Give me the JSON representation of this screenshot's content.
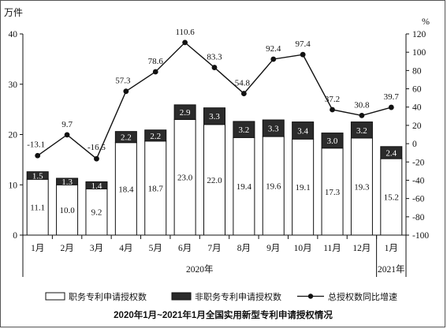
{
  "chart_data": {
    "type": "bar",
    "stacked": true,
    "categories": [
      "1月",
      "2月",
      "3月",
      "4月",
      "5月",
      "6月",
      "7月",
      "8月",
      "9月",
      "10月",
      "11月",
      "12月",
      "1月"
    ],
    "year_groups": [
      {
        "label": "2020年",
        "count": 12
      },
      {
        "label": "2021年",
        "count": 1
      }
    ],
    "series": [
      {
        "name": "职务专利申请授权数",
        "type": "bar",
        "axis": "left",
        "color": "#ffffff",
        "values": [
          11.1,
          10.0,
          9.2,
          18.4,
          18.7,
          23.0,
          22.0,
          19.4,
          19.6,
          19.1,
          17.3,
          19.3,
          15.2
        ],
        "labels": [
          "11.1",
          "10.0",
          "9.2",
          "18.4",
          "18.7",
          "23.0",
          "22.0",
          "19.4",
          "19.6",
          "19.1",
          "17.3",
          "19.3",
          "15.2"
        ]
      },
      {
        "name": "非职务专利申请授权数",
        "type": "bar",
        "axis": "left",
        "color": "#2b2b2b",
        "values": [
          1.5,
          1.3,
          1.4,
          2.2,
          2.2,
          2.9,
          3.3,
          3.2,
          3.3,
          3.4,
          3.0,
          3.2,
          2.4
        ],
        "labels": [
          "1.5",
          "1.3",
          "1.4",
          "2.2",
          "2.2",
          "2.9",
          "3.3",
          "3.2",
          "3.3",
          "3.4",
          "3.0",
          "3.2",
          "2.4"
        ]
      },
      {
        "name": "总授权数同比增速",
        "type": "line",
        "axis": "right",
        "color": "#111111",
        "values": [
          -13.1,
          9.7,
          -16.5,
          57.3,
          78.6,
          110.6,
          83.3,
          54.8,
          92.4,
          97.4,
          37.2,
          30.8,
          39.7
        ],
        "labels": [
          "-13.1",
          "9.7",
          "-16.5",
          "57.3",
          "78.6",
          "110.6",
          "83.3",
          "54.8",
          "92.4",
          "97.4",
          "37.2",
          "30.8",
          "39.7"
        ]
      }
    ],
    "left_axis": {
      "unit": "万件",
      "min": 0,
      "max": 40,
      "ticks": [
        "0",
        "10",
        "20",
        "30",
        "40"
      ]
    },
    "right_axis": {
      "unit": "%",
      "min": -100,
      "max": 120,
      "ticks": [
        "-100",
        "-80",
        "-60",
        "-40",
        "-20",
        "0",
        "20",
        "40",
        "60",
        "80",
        "100",
        "120"
      ]
    },
    "legend_position": "bottom",
    "title": "2020年1月~2021年1月全国实用新型专利申请授权情况"
  }
}
